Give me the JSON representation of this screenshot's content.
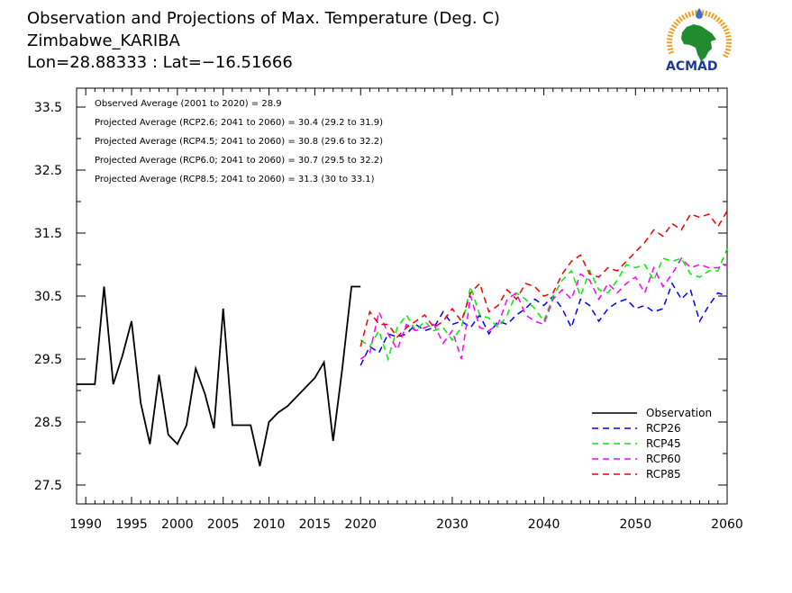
{
  "header": {
    "line1": "Observation and Projections of Max. Temperature (Deg. C)",
    "line2": "Zimbabwe_KARIBA",
    "line3": "Lon=28.88333 : Lat=−16.51666"
  },
  "logo": {
    "text": "ACMAD"
  },
  "chart_data": {
    "type": "line",
    "title": "Observation and Projections of Max. Temperature (Deg. C)",
    "xlabel": "",
    "ylabel": "",
    "xlim": [
      1989,
      2060
    ],
    "ylim": [
      27.2,
      33.8
    ],
    "grid": false,
    "legend_position": "bottom-right",
    "x_ticks": [
      {
        "value": 1990,
        "label": "1990"
      },
      {
        "value": 1995,
        "label": "1995"
      },
      {
        "value": 2000,
        "label": "2000"
      },
      {
        "value": 2005,
        "label": "2005"
      },
      {
        "value": 2010,
        "label": "2010"
      },
      {
        "value": 2015,
        "label": "2015"
      },
      {
        "value": 2020,
        "label": "2020"
      },
      {
        "value": 2030,
        "label": "2030"
      },
      {
        "value": 2040,
        "label": "2040"
      },
      {
        "value": 2050,
        "label": "2050"
      },
      {
        "value": 2060,
        "label": "2060"
      }
    ],
    "y_ticks": [
      {
        "value": 27.5,
        "label": "27.5"
      },
      {
        "value": 28.5,
        "label": "28.5"
      },
      {
        "value": 29.5,
        "label": "29.5"
      },
      {
        "value": 30.5,
        "label": "30.5"
      },
      {
        "value": 31.5,
        "label": "31.5"
      },
      {
        "value": 32.5,
        "label": "32.5"
      },
      {
        "value": 33.5,
        "label": "33.5"
      }
    ],
    "annotations": [
      "Observed Average (2001 to 2020) = 28.9",
      "Projected Average (RCP2.6; 2041 to 2060) = 30.4 (29.2 to 31.9)",
      "Projected Average (RCP4.5; 2041 to 2060) = 30.8 (29.6 to 32.2)",
      "Projected Average (RCP6.0; 2041 to 2060) = 30.7 (29.5 to 32.2)",
      "Projected Average (RCP8.5; 2041 to 2060) = 31.3 (30 to 33.1)"
    ],
    "series": [
      {
        "name": "Observation",
        "color": "#000000",
        "dashed": false,
        "x": [
          1989,
          1990,
          1991,
          1992,
          1993,
          1994,
          1995,
          1996,
          1997,
          1998,
          1999,
          2000,
          2001,
          2002,
          2003,
          2004,
          2005,
          2006,
          2007,
          2008,
          2009,
          2010,
          2011,
          2012,
          2013,
          2014,
          2015,
          2016,
          2017,
          2018,
          2019,
          2020
        ],
        "y": [
          29.1,
          29.1,
          29.1,
          30.65,
          29.1,
          29.55,
          30.1,
          28.8,
          28.15,
          29.25,
          28.3,
          28.15,
          28.45,
          29.35,
          28.95,
          28.4,
          30.3,
          28.45,
          28.45,
          28.45,
          27.8,
          28.5,
          28.65,
          28.75,
          28.9,
          29.05,
          29.2,
          29.45,
          28.2,
          29.35,
          30.65,
          30.65
        ]
      },
      {
        "name": "RCP26",
        "color": "#0000ff",
        "dashed": true,
        "x": [
          2020,
          2021,
          2022,
          2023,
          2024,
          2025,
          2026,
          2027,
          2028,
          2029,
          2030,
          2031,
          2032,
          2033,
          2034,
          2035,
          2036,
          2037,
          2038,
          2039,
          2040,
          2041,
          2042,
          2043,
          2044,
          2045,
          2046,
          2047,
          2048,
          2049,
          2050,
          2051,
          2052,
          2053,
          2054,
          2055,
          2056,
          2057,
          2058,
          2059,
          2060
        ],
        "y": [
          29.4,
          29.7,
          29.6,
          29.9,
          29.85,
          29.9,
          30.05,
          29.95,
          30.0,
          30.25,
          30.05,
          30.1,
          30.0,
          30.2,
          29.9,
          30.1,
          30.05,
          30.2,
          30.3,
          30.45,
          30.35,
          30.5,
          30.3,
          30.0,
          30.45,
          30.35,
          30.1,
          30.3,
          30.4,
          30.45,
          30.3,
          30.35,
          30.25,
          30.3,
          30.7,
          30.45,
          30.6,
          30.1,
          30.35,
          30.55,
          30.5
        ]
      },
      {
        "name": "RCP45",
        "color": "#00ee00",
        "dashed": true,
        "x": [
          2020,
          2021,
          2022,
          2023,
          2024,
          2025,
          2026,
          2027,
          2028,
          2029,
          2030,
          2031,
          2032,
          2033,
          2034,
          2035,
          2036,
          2037,
          2038,
          2039,
          2040,
          2041,
          2042,
          2043,
          2044,
          2045,
          2046,
          2047,
          2048,
          2049,
          2050,
          2051,
          2052,
          2053,
          2054,
          2055,
          2056,
          2057,
          2058,
          2059,
          2060
        ],
        "y": [
          29.8,
          29.7,
          29.95,
          29.5,
          30.0,
          30.2,
          29.95,
          30.1,
          29.95,
          30.0,
          29.8,
          30.0,
          30.65,
          30.2,
          30.15,
          30.0,
          30.2,
          30.55,
          30.45,
          30.3,
          30.1,
          30.5,
          30.75,
          30.9,
          30.5,
          30.9,
          30.6,
          30.55,
          30.75,
          31.0,
          30.95,
          31.0,
          30.75,
          31.1,
          31.05,
          31.1,
          30.85,
          30.8,
          30.9,
          30.9,
          31.25
        ]
      },
      {
        "name": "RCP60",
        "color": "#ff00ff",
        "dashed": true,
        "x": [
          2020,
          2021,
          2022,
          2023,
          2024,
          2025,
          2026,
          2027,
          2028,
          2029,
          2030,
          2031,
          2032,
          2033,
          2034,
          2035,
          2036,
          2037,
          2038,
          2039,
          2040,
          2041,
          2042,
          2043,
          2044,
          2045,
          2046,
          2047,
          2048,
          2049,
          2050,
          2051,
          2052,
          2053,
          2054,
          2055,
          2056,
          2057,
          2058,
          2059,
          2060
        ],
        "y": [
          29.5,
          29.6,
          30.25,
          29.9,
          29.65,
          30.05,
          29.95,
          30.0,
          30.05,
          29.75,
          29.95,
          29.5,
          30.5,
          30.0,
          29.95,
          30.05,
          30.45,
          30.55,
          30.2,
          30.1,
          30.05,
          30.45,
          30.6,
          30.45,
          30.85,
          30.75,
          30.45,
          30.7,
          30.55,
          30.7,
          30.8,
          30.55,
          30.95,
          30.65,
          30.85,
          31.1,
          30.95,
          31.0,
          30.95,
          30.95,
          31.0
        ]
      },
      {
        "name": "RCP85",
        "color": "#ee0000",
        "dashed": true,
        "x": [
          2020,
          2021,
          2022,
          2023,
          2024,
          2025,
          2026,
          2027,
          2028,
          2029,
          2030,
          2031,
          2032,
          2033,
          2034,
          2035,
          2036,
          2037,
          2038,
          2039,
          2040,
          2041,
          2042,
          2043,
          2044,
          2045,
          2046,
          2047,
          2048,
          2049,
          2050,
          2051,
          2052,
          2053,
          2054,
          2055,
          2056,
          2057,
          2058,
          2059,
          2060
        ],
        "y": [
          29.7,
          30.25,
          30.05,
          30.05,
          29.85,
          30.0,
          30.1,
          30.2,
          30.0,
          30.1,
          30.3,
          30.1,
          30.55,
          30.7,
          30.25,
          30.35,
          30.6,
          30.45,
          30.7,
          30.65,
          30.5,
          30.55,
          30.85,
          31.05,
          31.15,
          30.85,
          30.8,
          30.95,
          30.9,
          31.05,
          31.2,
          31.35,
          31.55,
          31.45,
          31.65,
          31.55,
          31.8,
          31.75,
          31.8,
          31.6,
          31.85
        ]
      }
    ]
  }
}
